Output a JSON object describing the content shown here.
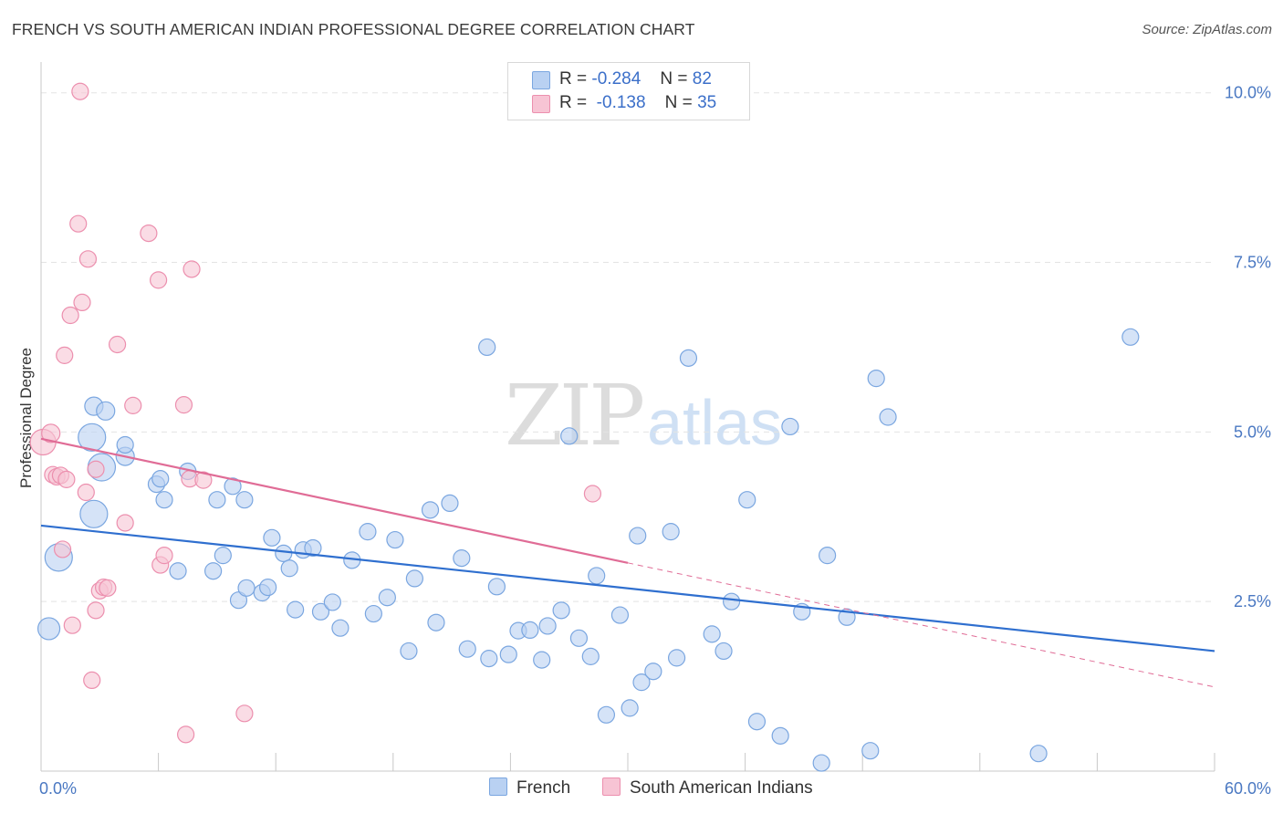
{
  "header": {
    "title": "FRENCH VS SOUTH AMERICAN INDIAN PROFESSIONAL DEGREE CORRELATION CHART",
    "source": "Source: ZipAtlas.com"
  },
  "watermark": {
    "zip": "ZIP",
    "atlas": "atlas"
  },
  "legend": {
    "french": {
      "r_label": "R =",
      "r_value": "-0.284",
      "n_label": "N =",
      "n_value": "82"
    },
    "sai": {
      "r_label": "R =",
      "r_value": "-0.138",
      "n_label": "N =",
      "n_value": "35"
    }
  },
  "bottom_legend": {
    "french": "French",
    "sai": "South American Indians"
  },
  "colors": {
    "french_fill": "#b9d1f2",
    "french_stroke": "#7aa6e0",
    "french_line": "#2f6fcf",
    "sai_fill": "#f7c4d4",
    "sai_stroke": "#ec8fae",
    "sai_line": "#e06c96",
    "grid": "#e4e4e4",
    "tick_text": "#4a78c2"
  },
  "chart_data": {
    "type": "scatter",
    "title": "FRENCH VS SOUTH AMERICAN INDIAN PROFESSIONAL DEGREE CORRELATION CHART",
    "xlabel": "",
    "ylabel": "Professional Degree",
    "xlim": [
      0,
      60
    ],
    "ylim": [
      0,
      10
    ],
    "x_tick_labels": [
      "0.0%",
      "60.0%"
    ],
    "y_ticks": [
      2.5,
      5.0,
      7.5,
      10.0
    ],
    "y_tick_labels": [
      "2.5%",
      "5.0%",
      "7.5%",
      "10.0%"
    ],
    "grid": "horizontal dashed",
    "legend_position": "top-center",
    "series": [
      {
        "name": "French",
        "r": -0.284,
        "n": 82,
        "trend": {
          "x": [
            0,
            60
          ],
          "y": [
            3.62,
            1.77
          ]
        },
        "points": [
          [
            2.6,
            4.92,
            15
          ],
          [
            3.1,
            4.48,
            15
          ],
          [
            2.7,
            3.79,
            15
          ],
          [
            0.9,
            3.15,
            15
          ],
          [
            0.4,
            2.1,
            12
          ],
          [
            2.7,
            5.38,
            10
          ],
          [
            3.3,
            5.31,
            10
          ],
          [
            4.3,
            4.64,
            10
          ],
          [
            4.3,
            4.81,
            9
          ],
          [
            5.9,
            4.23,
            9
          ],
          [
            6.1,
            4.31,
            9
          ],
          [
            6.3,
            4.0,
            9
          ],
          [
            7.5,
            4.42,
            9
          ],
          [
            9.0,
            4.0,
            9
          ],
          [
            9.8,
            4.2,
            9
          ],
          [
            10.4,
            4.0,
            9
          ],
          [
            7.0,
            2.95,
            9
          ],
          [
            8.8,
            2.95,
            9
          ],
          [
            9.3,
            3.18,
            9
          ],
          [
            10.1,
            2.52,
            9
          ],
          [
            10.5,
            2.7,
            9
          ],
          [
            11.3,
            2.63,
            9
          ],
          [
            11.6,
            2.71,
            9
          ],
          [
            11.8,
            3.44,
            9
          ],
          [
            12.4,
            3.21,
            9
          ],
          [
            12.7,
            2.99,
            9
          ],
          [
            13.4,
            3.26,
            9
          ],
          [
            13.9,
            3.29,
            9
          ],
          [
            13.0,
            2.38,
            9
          ],
          [
            14.3,
            2.35,
            9
          ],
          [
            14.9,
            2.49,
            9
          ],
          [
            15.3,
            2.11,
            9
          ],
          [
            15.9,
            3.11,
            9
          ],
          [
            16.7,
            3.53,
            9
          ],
          [
            17.0,
            2.32,
            9
          ],
          [
            17.7,
            2.56,
            9
          ],
          [
            18.1,
            3.41,
            9
          ],
          [
            18.8,
            1.77,
            9
          ],
          [
            19.1,
            2.84,
            9
          ],
          [
            19.9,
            3.85,
            9
          ],
          [
            20.2,
            2.19,
            9
          ],
          [
            20.9,
            3.95,
            9
          ],
          [
            21.5,
            3.14,
            9
          ],
          [
            21.8,
            1.8,
            9
          ],
          [
            22.8,
            6.25,
            9
          ],
          [
            22.9,
            1.66,
            9
          ],
          [
            23.3,
            2.72,
            9
          ],
          [
            23.9,
            1.72,
            9
          ],
          [
            24.4,
            2.07,
            9
          ],
          [
            25.0,
            2.08,
            9
          ],
          [
            25.6,
            1.64,
            9
          ],
          [
            25.9,
            2.14,
            9
          ],
          [
            26.6,
            2.37,
            9
          ],
          [
            27.0,
            4.94,
            9
          ],
          [
            27.5,
            1.96,
            9
          ],
          [
            28.1,
            1.69,
            9
          ],
          [
            28.4,
            2.88,
            9
          ],
          [
            28.9,
            0.83,
            9
          ],
          [
            29.6,
            2.3,
            9
          ],
          [
            30.1,
            0.93,
            9
          ],
          [
            30.5,
            3.47,
            9
          ],
          [
            30.7,
            1.31,
            9
          ],
          [
            31.3,
            1.47,
            9
          ],
          [
            32.2,
            3.53,
            9
          ],
          [
            32.5,
            1.67,
            9
          ],
          [
            33.1,
            6.09,
            9
          ],
          [
            34.3,
            2.02,
            9
          ],
          [
            34.9,
            1.77,
            9
          ],
          [
            35.3,
            2.5,
            9
          ],
          [
            36.1,
            4.0,
            9
          ],
          [
            36.6,
            0.73,
            9
          ],
          [
            37.8,
            0.52,
            9
          ],
          [
            38.3,
            5.08,
            9
          ],
          [
            38.9,
            2.35,
            9
          ],
          [
            39.9,
            0.12,
            9
          ],
          [
            40.2,
            3.18,
            9
          ],
          [
            41.2,
            2.27,
            9
          ],
          [
            42.4,
            0.3,
            9
          ],
          [
            42.7,
            5.79,
            9
          ],
          [
            43.3,
            5.22,
            9
          ],
          [
            51.0,
            0.26,
            9
          ],
          [
            55.7,
            6.4,
            9
          ]
        ]
      },
      {
        "name": "South American Indians",
        "r": -0.138,
        "n": 35,
        "trend": {
          "x": [
            0,
            30
          ],
          "y": [
            4.9,
            3.07
          ]
        },
        "trend_dashed_extension": {
          "x": [
            30,
            60
          ],
          "y": [
            3.07,
            1.24
          ]
        },
        "points": [
          [
            0.1,
            4.85,
            14
          ],
          [
            0.5,
            4.98,
            10
          ],
          [
            0.6,
            4.37,
            9
          ],
          [
            0.8,
            4.34,
            9
          ],
          [
            1.0,
            4.36,
            9
          ],
          [
            1.1,
            3.27,
            9
          ],
          [
            1.2,
            6.13,
            9
          ],
          [
            1.5,
            6.72,
            9
          ],
          [
            1.6,
            2.15,
            9
          ],
          [
            1.9,
            8.07,
            9
          ],
          [
            2.1,
            6.91,
            9
          ],
          [
            2.3,
            4.11,
            9
          ],
          [
            2.4,
            7.55,
            9
          ],
          [
            2.6,
            1.34,
            9
          ],
          [
            2.8,
            2.37,
            9
          ],
          [
            2.8,
            4.45,
            9
          ],
          [
            3.0,
            2.66,
            9
          ],
          [
            3.2,
            2.71,
            9
          ],
          [
            3.4,
            2.7,
            9
          ],
          [
            3.9,
            6.29,
            9
          ],
          [
            4.3,
            3.66,
            9
          ],
          [
            4.7,
            5.39,
            9
          ],
          [
            5.5,
            7.93,
            9
          ],
          [
            6.0,
            7.24,
            9
          ],
          [
            6.1,
            3.04,
            9
          ],
          [
            6.3,
            3.18,
            9
          ],
          [
            7.3,
            5.4,
            9
          ],
          [
            7.4,
            0.54,
            9
          ],
          [
            7.6,
            4.31,
            9
          ],
          [
            7.7,
            7.4,
            9
          ],
          [
            8.3,
            4.29,
            9
          ],
          [
            10.4,
            0.85,
            9
          ],
          [
            28.2,
            4.09,
            9
          ],
          [
            2.0,
            10.02,
            9
          ],
          [
            1.3,
            4.3,
            9
          ]
        ]
      }
    ]
  }
}
